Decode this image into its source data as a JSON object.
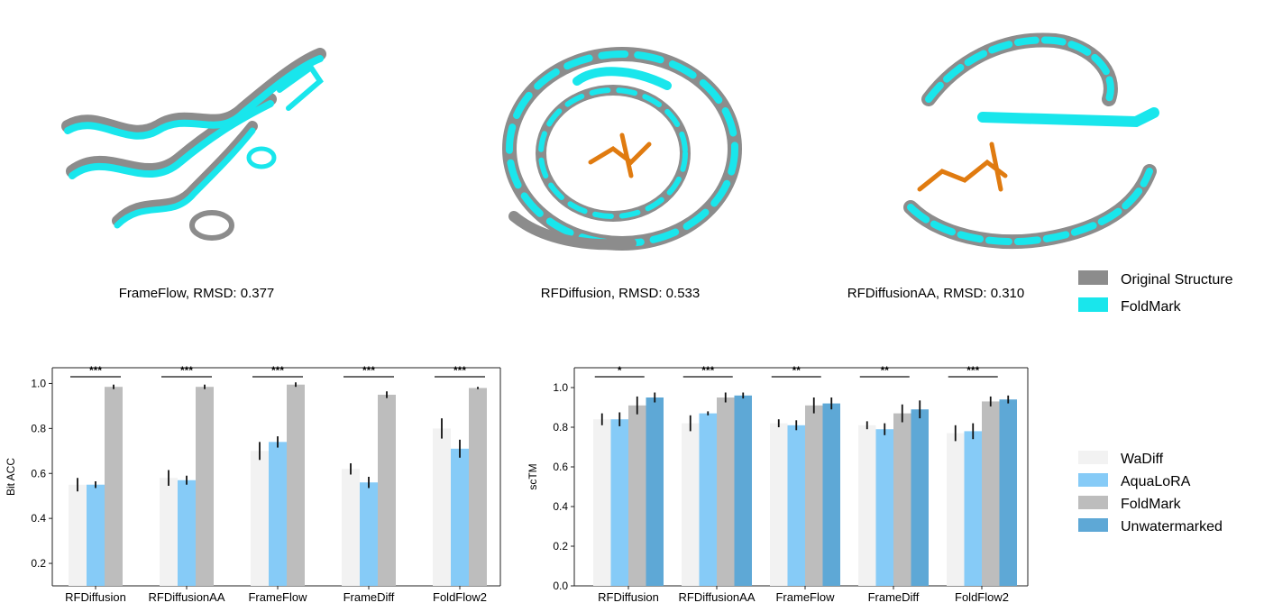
{
  "structures": {
    "panels": [
      {
        "caption": "FrameFlow, RMSD: 0.377"
      },
      {
        "caption": "RFDiffusion, RMSD: 0.533"
      },
      {
        "caption": "RFDiffusionAA, RMSD: 0.310"
      }
    ],
    "legend": [
      {
        "label": "Original Structure",
        "color": "#8c8c8c"
      },
      {
        "label": "FoldMark",
        "color": "#19e6ec"
      }
    ],
    "ligand_color": "#e07b10"
  },
  "chart_data": [
    {
      "type": "bar",
      "ylabel": "Bit ACC",
      "ylim": [
        0.1,
        1.07
      ],
      "yticks": [
        "0.2",
        "0.4",
        "0.6",
        "0.8",
        "1.0"
      ],
      "categories": [
        "RFDiffusion",
        "RFDiffusionAA",
        "FrameFlow",
        "FrameDiff",
        "FoldFlow2"
      ],
      "series": [
        {
          "name": "WaDiff",
          "values": [
            0.55,
            0.58,
            0.7,
            0.62,
            0.8
          ],
          "errors": [
            0.03,
            0.035,
            0.04,
            0.025,
            0.045
          ]
        },
        {
          "name": "AquaLoRA",
          "values": [
            0.55,
            0.57,
            0.74,
            0.56,
            0.71
          ],
          "errors": [
            0.015,
            0.02,
            0.025,
            0.025,
            0.04
          ]
        },
        {
          "name": "FoldMark",
          "values": [
            0.985,
            0.985,
            0.995,
            0.95,
            0.98
          ],
          "errors": [
            0.01,
            0.01,
            0.01,
            0.015,
            0.005
          ]
        }
      ],
      "significance": [
        "***",
        "***",
        "***",
        "***",
        "***"
      ]
    },
    {
      "type": "bar",
      "ylabel": "scTM",
      "ylim": [
        0.0,
        1.1
      ],
      "yticks": [
        "0.0",
        "0.2",
        "0.4",
        "0.6",
        "0.8",
        "1.0"
      ],
      "categories": [
        "RFDiffusion",
        "RFDiffusionAA",
        "FrameFlow",
        "FrameDiff",
        "FoldFlow2"
      ],
      "series": [
        {
          "name": "WaDiff",
          "values": [
            0.84,
            0.82,
            0.82,
            0.81,
            0.77
          ],
          "errors": [
            0.03,
            0.04,
            0.02,
            0.02,
            0.04
          ]
        },
        {
          "name": "AquaLoRA",
          "values": [
            0.84,
            0.87,
            0.81,
            0.79,
            0.78
          ],
          "errors": [
            0.035,
            0.01,
            0.025,
            0.03,
            0.04
          ]
        },
        {
          "name": "FoldMark",
          "values": [
            0.91,
            0.95,
            0.91,
            0.87,
            0.93
          ],
          "errors": [
            0.045,
            0.025,
            0.04,
            0.045,
            0.025
          ]
        },
        {
          "name": "Unwatermarked",
          "values": [
            0.95,
            0.96,
            0.92,
            0.89,
            0.94
          ],
          "errors": [
            0.025,
            0.015,
            0.03,
            0.045,
            0.02
          ]
        }
      ],
      "significance": [
        "*",
        "***",
        "**",
        "**",
        "***"
      ]
    }
  ],
  "bar_legend": [
    {
      "label": "WaDiff",
      "color": "#f2f2f2"
    },
    {
      "label": "AquaLoRA",
      "color": "#86cbf7"
    },
    {
      "label": "FoldMark",
      "color": "#bdbdbd"
    },
    {
      "label": "Unwatermarked",
      "color": "#5ea8d6"
    }
  ],
  "colors": {
    "WaDiff": "#f2f2f2",
    "AquaLoRA": "#86cbf7",
    "FoldMark": "#bdbdbd",
    "Unwatermarked": "#5ea8d6"
  }
}
